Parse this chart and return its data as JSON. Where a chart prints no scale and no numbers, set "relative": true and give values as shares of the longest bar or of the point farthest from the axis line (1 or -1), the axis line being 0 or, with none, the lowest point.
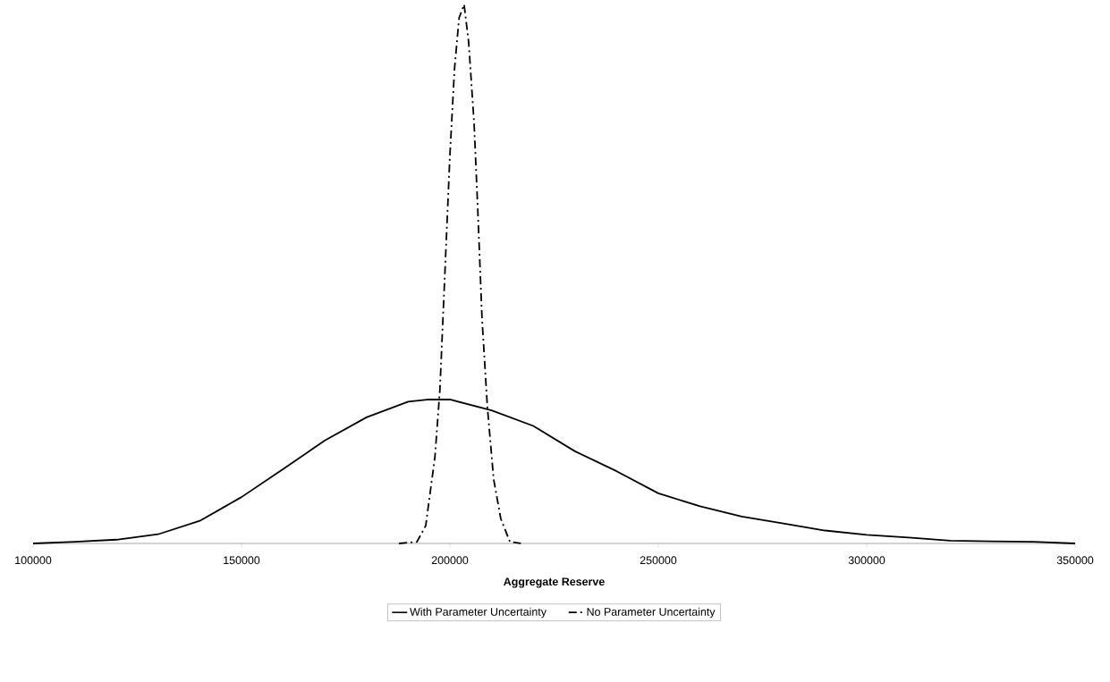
{
  "chart_data": {
    "type": "line",
    "relative": true,
    "xlabel": "Aggregate Reserve",
    "xlim": [
      100000,
      350000
    ],
    "xticks": [
      100000,
      150000,
      200000,
      250000,
      300000,
      350000
    ],
    "legend": "bottom",
    "grid": false,
    "marker": "none",
    "series": [
      {
        "name": "With Parameter Uncertainty",
        "color": "#000000",
        "line_style": "solid",
        "x": [
          100000,
          110000,
          120000,
          130000,
          140000,
          150000,
          160000,
          170000,
          180000,
          190000,
          195000,
          200000,
          210000,
          220000,
          230000,
          240000,
          250000,
          260000,
          270000,
          280000,
          290000,
          300000,
          310000,
          320000,
          330000,
          340000,
          350000
        ],
        "values": [
          0,
          0.003,
          0.007,
          0.017,
          0.042,
          0.086,
          0.138,
          0.191,
          0.234,
          0.263,
          0.267,
          0.267,
          0.247,
          0.218,
          0.171,
          0.134,
          0.093,
          0.069,
          0.05,
          0.037,
          0.024,
          0.016,
          0.011,
          0.005,
          0.004,
          0.003,
          0
        ]
      },
      {
        "name": "No Parameter Uncertainty",
        "color": "#000000",
        "line_style": "dashdot",
        "x": [
          187800,
          192100,
          194200,
          196400,
          197600,
          198900,
          200000,
          201100,
          202200,
          203400,
          204500,
          205800,
          206700,
          207700,
          209000,
          210500,
          212200,
          214400,
          217000
        ],
        "values": [
          0,
          0.003,
          0.033,
          0.16,
          0.285,
          0.52,
          0.72,
          0.88,
          0.975,
          1,
          0.93,
          0.78,
          0.617,
          0.418,
          0.252,
          0.119,
          0.046,
          0.003,
          0
        ]
      }
    ]
  }
}
